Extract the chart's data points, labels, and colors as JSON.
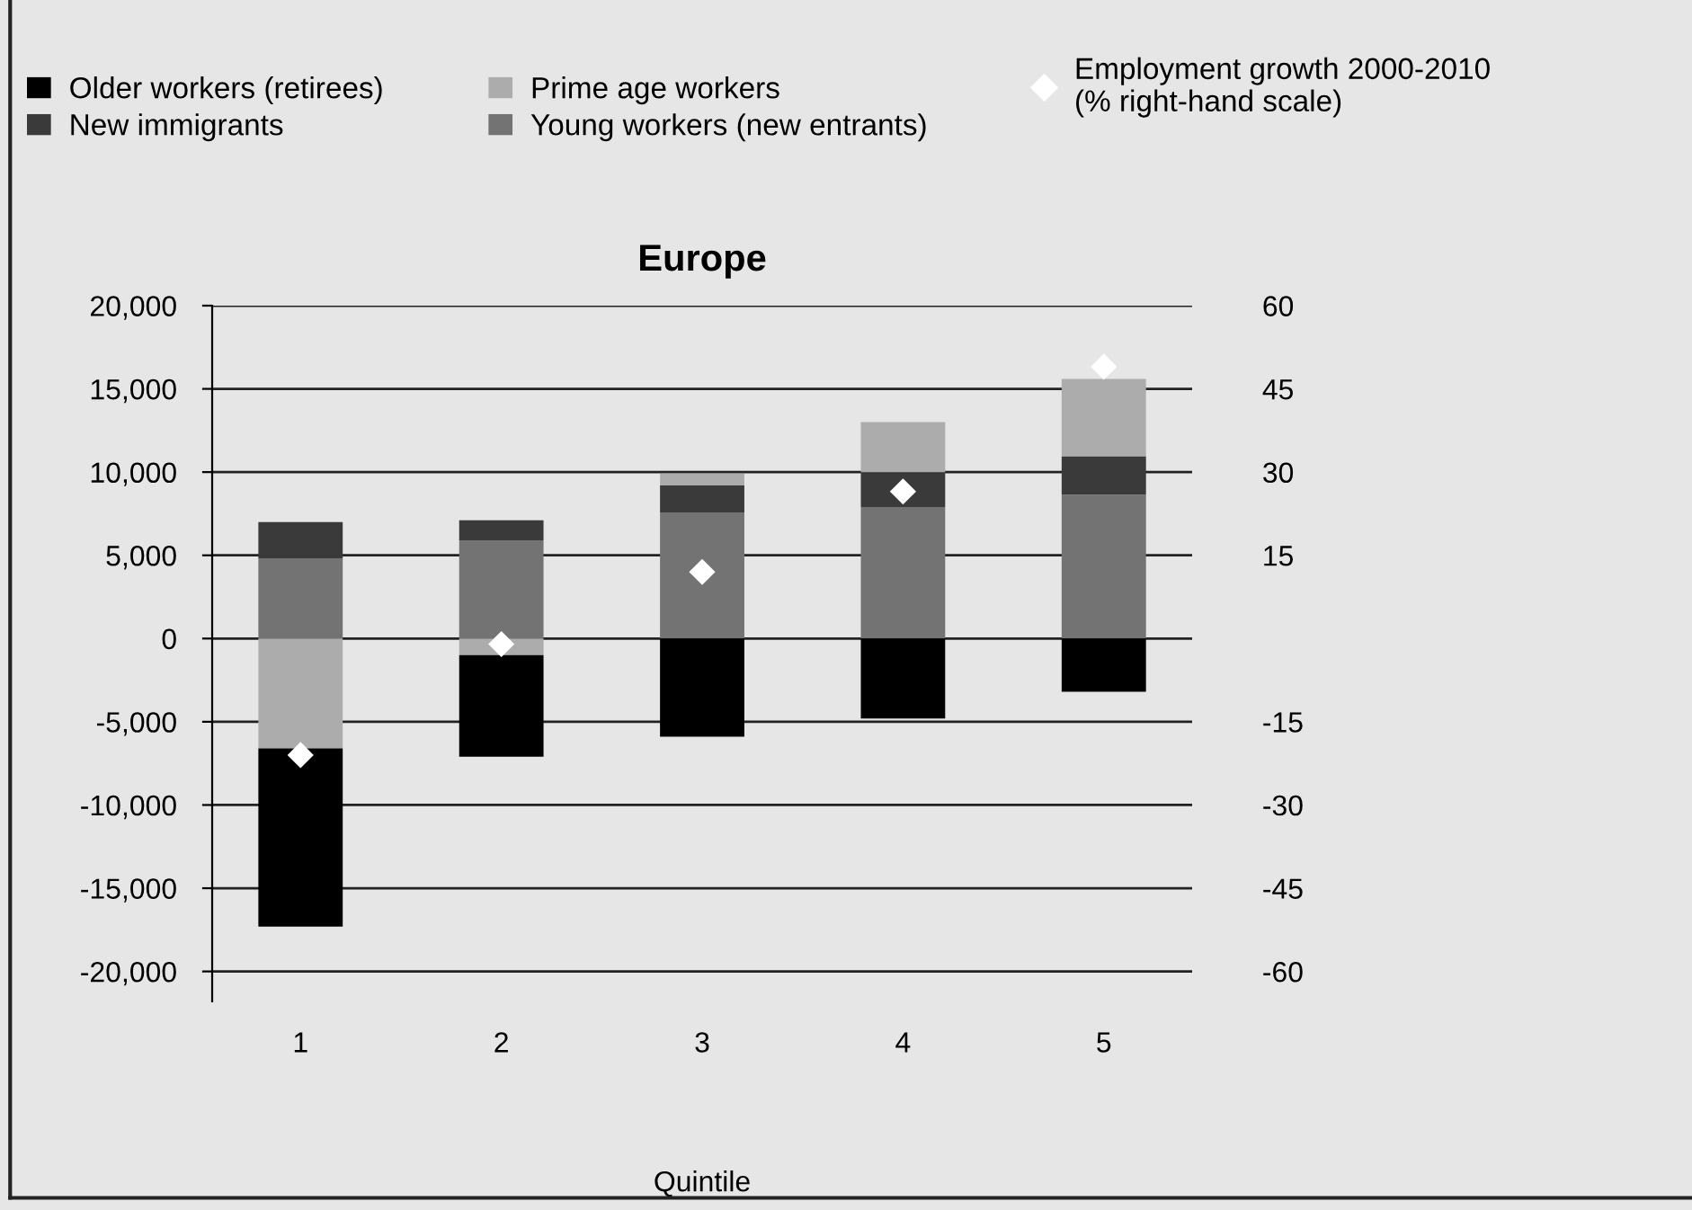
{
  "chart_data": {
    "type": "bar",
    "title": "Europe",
    "xlabel": "Quintile",
    "categories": [
      "1",
      "2",
      "3",
      "4",
      "5"
    ],
    "stacked": true,
    "series": [
      {
        "name": "Young workers (new entrants)",
        "color": "#737373",
        "values": [
          4800,
          5900,
          7550,
          7900,
          8650
        ]
      },
      {
        "name": "New immigrants",
        "color": "#3a3a3a",
        "values": [
          2200,
          1200,
          1650,
          2100,
          2300
        ]
      },
      {
        "name": "Prime age workers",
        "color": "#acacac",
        "values": [
          -6600,
          -1000,
          700,
          3000,
          4650
        ]
      },
      {
        "name": "Older workers (retirees)",
        "color": "#000000",
        "values": [
          -10700,
          -6100,
          -5900,
          -4800,
          -3200
        ]
      },
      {
        "name": "Employment growth 2000-2010\n(% right-hand scale)",
        "type": "scatter",
        "axis": "y2",
        "marker": "diamond",
        "color": "#ffffff",
        "x": [
          "1",
          "2",
          "3",
          "4",
          "5"
        ],
        "values": [
          -21,
          -1,
          12,
          26.5,
          49
        ]
      }
    ],
    "ylim": [
      -21800,
      20000
    ],
    "yticks": [
      {
        "value": -20000,
        "label": "-20,000"
      },
      {
        "value": -15000,
        "label": "-15,000"
      },
      {
        "value": -10000,
        "label": "-10,000"
      },
      {
        "value": -5000,
        "label": "-5,000"
      },
      0,
      {
        "value": 5000,
        "label": "5,000"
      },
      {
        "value": 10000,
        "label": "10,000"
      },
      {
        "value": 15000,
        "label": "15,000"
      },
      {
        "value": 20000,
        "label": "20,000"
      }
    ],
    "y2lim": [
      -65.4,
      60
    ],
    "y2ticks": [
      -60,
      -45,
      -30,
      -15,
      15,
      30,
      45,
      60
    ],
    "grid": "y",
    "legend": "top"
  }
}
